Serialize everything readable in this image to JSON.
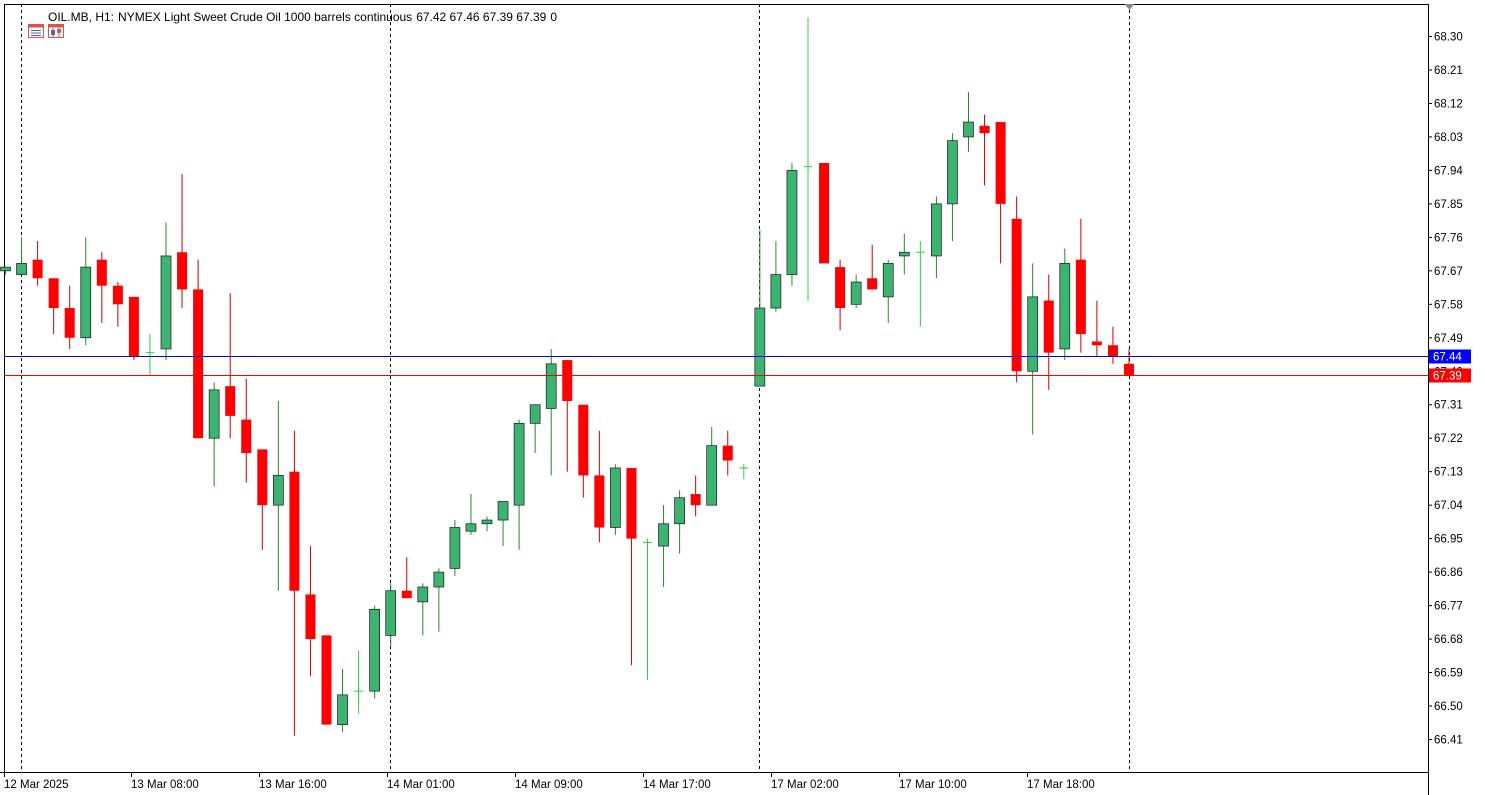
{
  "header": {
    "symbol": "OIL.MB, H1:",
    "description": "NYMEX Light Sweet Crude Oil 1000 barrels continuous",
    "ohlc": "67.42 67.46 67.39 67.39",
    "volume": "0",
    "icons": [
      "window-list-icon",
      "chart-type-icon"
    ]
  },
  "colors": {
    "bull_fill": "#3cb371",
    "bear_fill": "#ff0000",
    "doji_bull": "#2ecc40",
    "wick_bull": "#228b22",
    "wick_bear": "#cc0000",
    "bid_line": "#0000ff",
    "ask_line": "#ff0000",
    "grid": "#000000",
    "axis": "#000000"
  },
  "chart_data": {
    "type": "candlestick",
    "timeframe": "H1",
    "ylim": [
      66.33,
      68.42
    ],
    "y_ticks": [
      "68.30",
      "68.21",
      "68.12",
      "68.03",
      "67.94",
      "67.85",
      "67.76",
      "67.67",
      "67.58",
      "67.49",
      "67.40",
      "67.31",
      "67.22",
      "67.13",
      "67.04",
      "66.95",
      "66.86",
      "66.77",
      "66.68",
      "66.59",
      "66.50",
      "66.41"
    ],
    "x_ticks": [
      "12 Mar 2025",
      "13 Mar 08:00",
      "13 Mar 16:00",
      "14 Mar 01:00",
      "14 Mar 09:00",
      "14 Mar 17:00",
      "17 Mar 02:00",
      "17 Mar 10:00",
      "17 Mar 18:00"
    ],
    "session_separators": [
      1,
      24,
      47,
      70
    ],
    "bid_price": "67.44",
    "ask_price": "67.39",
    "bid": 67.44,
    "ask": 67.39,
    "candles": [
      {
        "o": 67.67,
        "h": 67.68,
        "l": 67.66,
        "c": 67.68
      },
      {
        "o": 67.66,
        "h": 67.76,
        "l": 67.66,
        "c": 67.69
      },
      {
        "o": 67.7,
        "h": 67.75,
        "l": 67.63,
        "c": 67.65
      },
      {
        "o": 67.65,
        "h": 67.65,
        "l": 67.5,
        "c": 67.57
      },
      {
        "o": 67.57,
        "h": 67.63,
        "l": 67.46,
        "c": 67.49
      },
      {
        "o": 67.49,
        "h": 67.76,
        "l": 67.47,
        "c": 67.68
      },
      {
        "o": 67.7,
        "h": 67.72,
        "l": 67.53,
        "c": 67.63
      },
      {
        "o": 67.63,
        "h": 67.64,
        "l": 67.52,
        "c": 67.58
      },
      {
        "o": 67.6,
        "h": 67.6,
        "l": 67.43,
        "c": 67.44
      },
      {
        "o": 67.45,
        "h": 67.5,
        "l": 67.39,
        "c": 67.45
      },
      {
        "o": 67.46,
        "h": 67.8,
        "l": 67.43,
        "c": 67.71
      },
      {
        "o": 67.72,
        "h": 67.93,
        "l": 67.57,
        "c": 67.62
      },
      {
        "o": 67.62,
        "h": 67.7,
        "l": 67.22,
        "c": 67.22
      },
      {
        "o": 67.22,
        "h": 67.37,
        "l": 67.09,
        "c": 67.35
      },
      {
        "o": 67.36,
        "h": 67.61,
        "l": 67.22,
        "c": 67.28
      },
      {
        "o": 67.27,
        "h": 67.38,
        "l": 67.1,
        "c": 67.18
      },
      {
        "o": 67.19,
        "h": 67.19,
        "l": 66.92,
        "c": 67.04
      },
      {
        "o": 67.04,
        "h": 67.32,
        "l": 66.81,
        "c": 67.12
      },
      {
        "o": 67.13,
        "h": 67.24,
        "l": 66.42,
        "c": 66.81
      },
      {
        "o": 66.8,
        "h": 66.93,
        "l": 66.58,
        "c": 66.68
      },
      {
        "o": 66.69,
        "h": 66.69,
        "l": 66.45,
        "c": 66.45
      },
      {
        "o": 66.45,
        "h": 66.6,
        "l": 66.43,
        "c": 66.53
      },
      {
        "o": 66.54,
        "h": 66.65,
        "l": 66.48,
        "c": 66.54
      },
      {
        "o": 66.54,
        "h": 66.77,
        "l": 66.52,
        "c": 66.76
      },
      {
        "o": 66.69,
        "h": 66.83,
        "l": 66.66,
        "c": 66.81
      },
      {
        "o": 66.81,
        "h": 66.9,
        "l": 66.79,
        "c": 66.79
      },
      {
        "o": 66.78,
        "h": 66.83,
        "l": 66.69,
        "c": 66.82
      },
      {
        "o": 66.82,
        "h": 66.87,
        "l": 66.7,
        "c": 66.86
      },
      {
        "o": 66.87,
        "h": 67.0,
        "l": 66.85,
        "c": 66.98
      },
      {
        "o": 66.97,
        "h": 67.07,
        "l": 66.96,
        "c": 66.99
      },
      {
        "o": 66.99,
        "h": 67.01,
        "l": 66.97,
        "c": 67.0
      },
      {
        "o": 67.0,
        "h": 67.05,
        "l": 66.93,
        "c": 67.05
      },
      {
        "o": 67.04,
        "h": 67.27,
        "l": 66.92,
        "c": 67.26
      },
      {
        "o": 67.26,
        "h": 67.31,
        "l": 67.18,
        "c": 67.31
      },
      {
        "o": 67.3,
        "h": 67.46,
        "l": 67.12,
        "c": 67.42
      },
      {
        "o": 67.43,
        "h": 67.43,
        "l": 67.13,
        "c": 67.32
      },
      {
        "o": 67.31,
        "h": 67.31,
        "l": 67.06,
        "c": 67.12
      },
      {
        "o": 67.12,
        "h": 67.24,
        "l": 66.94,
        "c": 66.98
      },
      {
        "o": 66.98,
        "h": 67.15,
        "l": 66.96,
        "c": 67.14
      },
      {
        "o": 67.14,
        "h": 67.14,
        "l": 66.61,
        "c": 66.95
      },
      {
        "o": 66.94,
        "h": 66.95,
        "l": 66.57,
        "c": 66.94
      },
      {
        "o": 66.93,
        "h": 67.04,
        "l": 66.82,
        "c": 66.99
      },
      {
        "o": 66.99,
        "h": 67.08,
        "l": 66.91,
        "c": 67.06
      },
      {
        "o": 67.07,
        "h": 67.12,
        "l": 67.01,
        "c": 67.04
      },
      {
        "o": 67.04,
        "h": 67.25,
        "l": 67.04,
        "c": 67.2
      },
      {
        "o": 67.2,
        "h": 67.24,
        "l": 67.12,
        "c": 67.16
      },
      {
        "o": 67.14,
        "h": 67.15,
        "l": 67.11,
        "c": 67.14
      },
      {
        "o": 67.36,
        "h": 67.78,
        "l": 67.36,
        "c": 67.57
      },
      {
        "o": 67.57,
        "h": 67.75,
        "l": 67.56,
        "c": 67.66
      },
      {
        "o": 67.66,
        "h": 67.96,
        "l": 67.63,
        "c": 67.94
      },
      {
        "o": 67.95,
        "h": 68.35,
        "l": 67.59,
        "c": 67.95
      },
      {
        "o": 67.96,
        "h": 67.96,
        "l": 67.69,
        "c": 67.69
      },
      {
        "o": 67.68,
        "h": 67.7,
        "l": 67.51,
        "c": 67.57
      },
      {
        "o": 67.58,
        "h": 67.66,
        "l": 67.57,
        "c": 67.64
      },
      {
        "o": 67.65,
        "h": 67.74,
        "l": 67.62,
        "c": 67.62
      },
      {
        "o": 67.6,
        "h": 67.7,
        "l": 67.53,
        "c": 67.69
      },
      {
        "o": 67.71,
        "h": 67.77,
        "l": 67.66,
        "c": 67.72
      },
      {
        "o": 67.72,
        "h": 67.75,
        "l": 67.52,
        "c": 67.72
      },
      {
        "o": 67.71,
        "h": 67.87,
        "l": 67.65,
        "c": 67.85
      },
      {
        "o": 67.85,
        "h": 68.04,
        "l": 67.75,
        "c": 68.02
      },
      {
        "o": 68.03,
        "h": 68.15,
        "l": 67.99,
        "c": 68.07
      },
      {
        "o": 68.06,
        "h": 68.09,
        "l": 67.9,
        "c": 68.04
      },
      {
        "o": 68.07,
        "h": 68.07,
        "l": 67.69,
        "c": 67.85
      },
      {
        "o": 67.81,
        "h": 67.87,
        "l": 67.37,
        "c": 67.4
      },
      {
        "o": 67.4,
        "h": 67.69,
        "l": 67.23,
        "c": 67.6
      },
      {
        "o": 67.59,
        "h": 67.66,
        "l": 67.35,
        "c": 67.45
      },
      {
        "o": 67.46,
        "h": 67.73,
        "l": 67.43,
        "c": 67.69
      },
      {
        "o": 67.7,
        "h": 67.81,
        "l": 67.45,
        "c": 67.5
      },
      {
        "o": 67.48,
        "h": 67.59,
        "l": 67.44,
        "c": 67.47
      },
      {
        "o": 67.47,
        "h": 67.52,
        "l": 67.42,
        "c": 67.44
      },
      {
        "o": 67.42,
        "h": 67.46,
        "l": 67.39,
        "c": 67.39
      }
    ]
  }
}
